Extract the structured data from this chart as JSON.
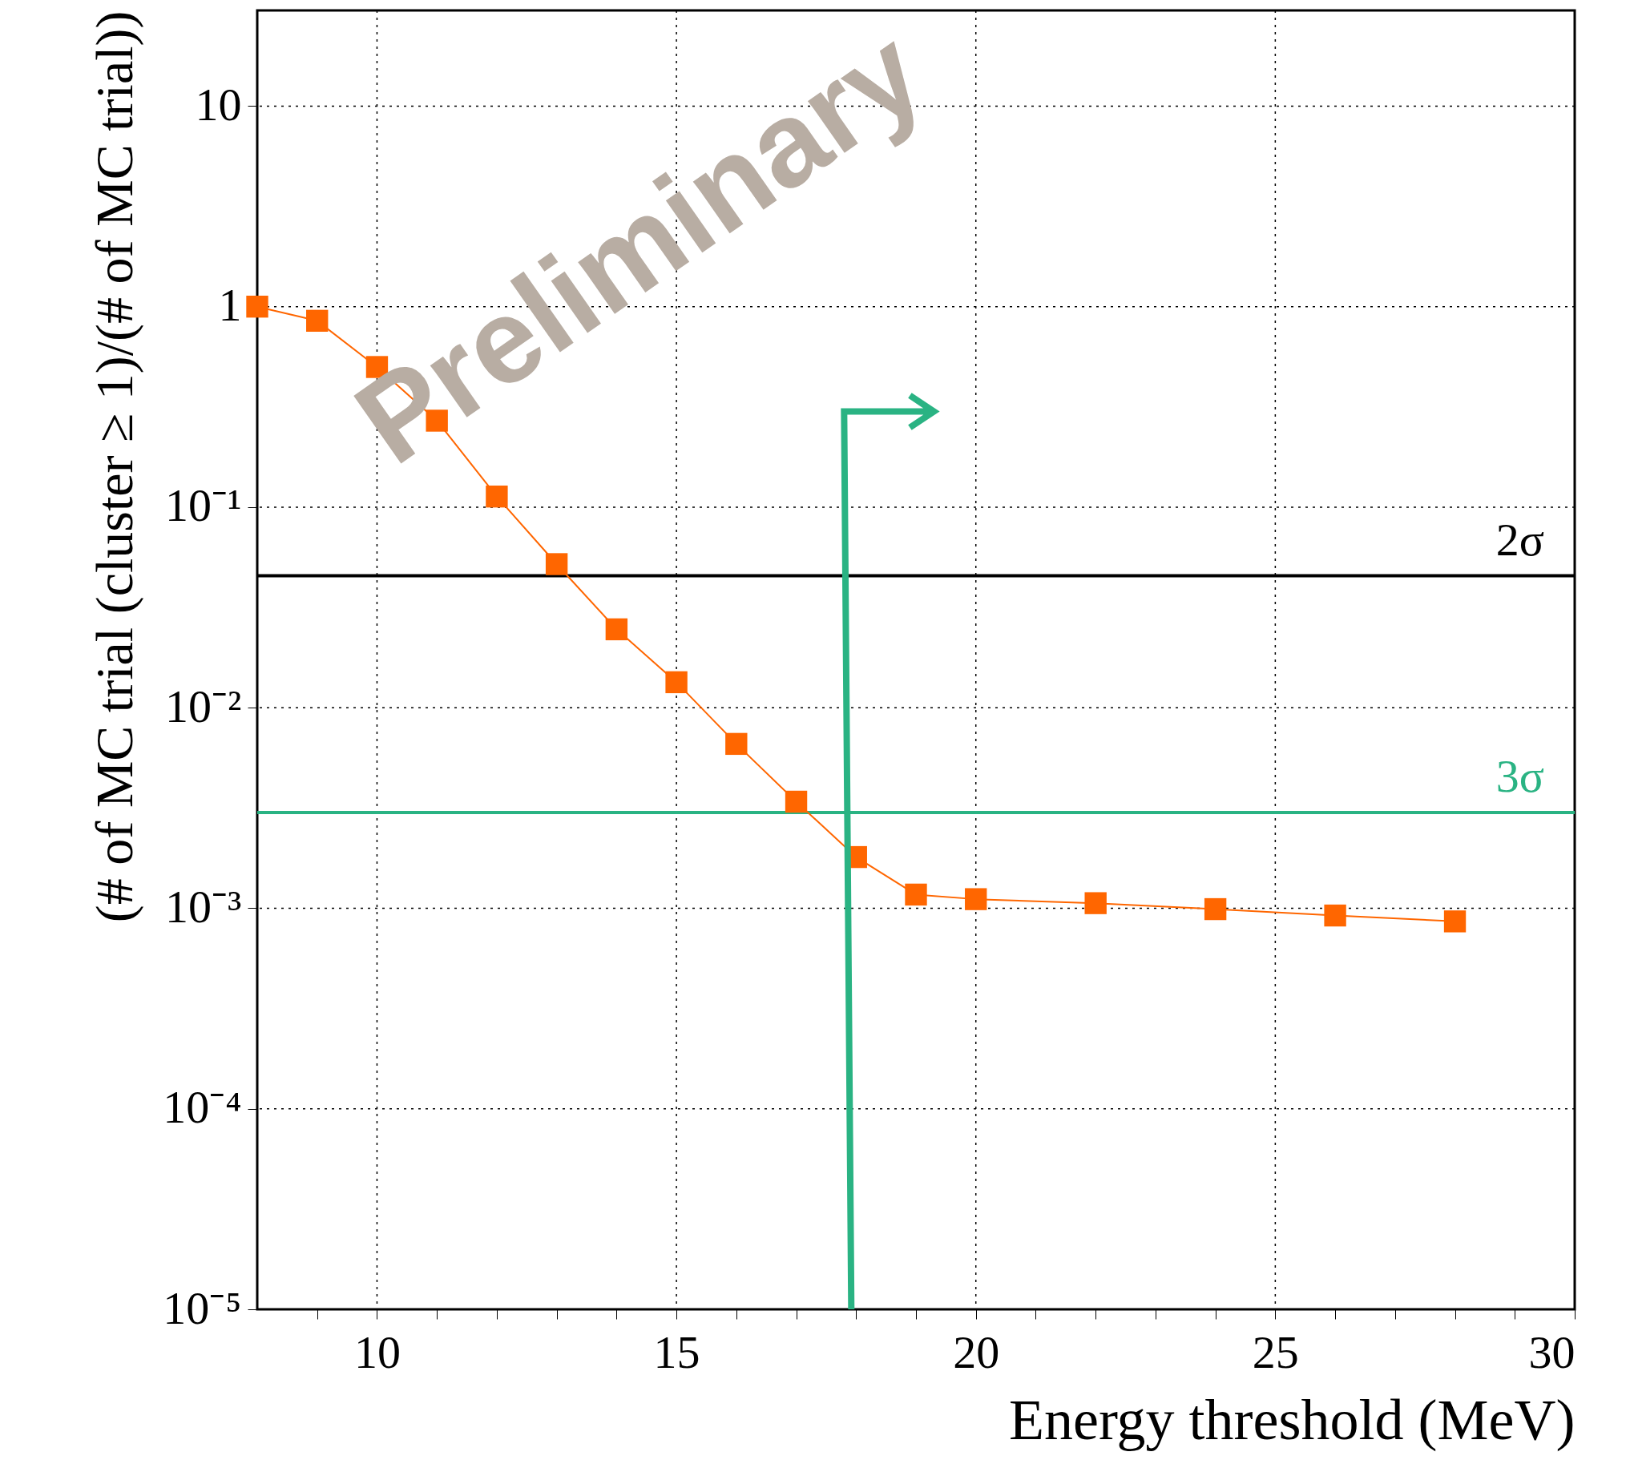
{
  "chart_data": {
    "type": "line",
    "xlabel": "Energy threshold (MeV)",
    "ylabel": "(# of MC trial (cluster ≥ 1)/(# of MC trial))",
    "x": [
      8,
      9,
      10,
      11,
      12,
      13,
      14,
      15,
      16,
      17,
      18,
      19,
      20,
      22,
      24,
      26,
      28
    ],
    "series": [
      {
        "color": "#ff6600",
        "values": [
          1.0,
          0.85,
          0.5,
          0.27,
          0.113,
          0.052,
          0.0246,
          0.0134,
          0.0066,
          0.0034,
          0.0018,
          0.00117,
          0.00111,
          0.00106,
          0.00099,
          0.00092,
          0.00086
        ]
      }
    ],
    "marker": "square",
    "line_style": "solid",
    "log": "y",
    "grid": true,
    "xlim": [
      8,
      30
    ],
    "xticks": [
      {
        "value": 9,
        "label": null
      },
      10,
      {
        "value": 11,
        "label": null
      },
      {
        "value": 12,
        "label": null
      },
      {
        "value": 13,
        "label": null
      },
      {
        "value": 14,
        "label": null
      },
      15,
      {
        "value": 16,
        "label": null
      },
      {
        "value": 17,
        "label": null
      },
      {
        "value": 18,
        "label": null
      },
      {
        "value": 19,
        "label": null
      },
      20,
      {
        "value": 21,
        "label": null
      },
      {
        "value": 22,
        "label": null
      },
      {
        "value": 23,
        "label": null
      },
      {
        "value": 24,
        "label": null
      },
      25,
      {
        "value": 26,
        "label": null
      },
      {
        "value": 27,
        "label": null
      },
      {
        "value": 28,
        "label": null
      },
      {
        "value": 29,
        "label": null
      },
      30
    ],
    "ylim": [
      1e-05,
      30
    ],
    "yticks": [
      {
        "value": 1e-05,
        "label": "10⁻⁵"
      },
      {
        "value": 0.0001,
        "label": "10⁻⁴"
      },
      {
        "value": 0.001,
        "label": "10⁻³"
      },
      {
        "value": 0.01,
        "label": "10⁻²"
      },
      {
        "value": 0.1,
        "label": "10⁻¹"
      },
      1,
      10
    ],
    "ref_lines": [
      {
        "axis": "y",
        "value": 0.0455,
        "label": "2σ",
        "color": "#000000"
      },
      {
        "axis": "y",
        "value": 0.003,
        "label": "3σ",
        "color": "#2ab383"
      }
    ],
    "annotations": [
      "Preliminary"
    ]
  }
}
